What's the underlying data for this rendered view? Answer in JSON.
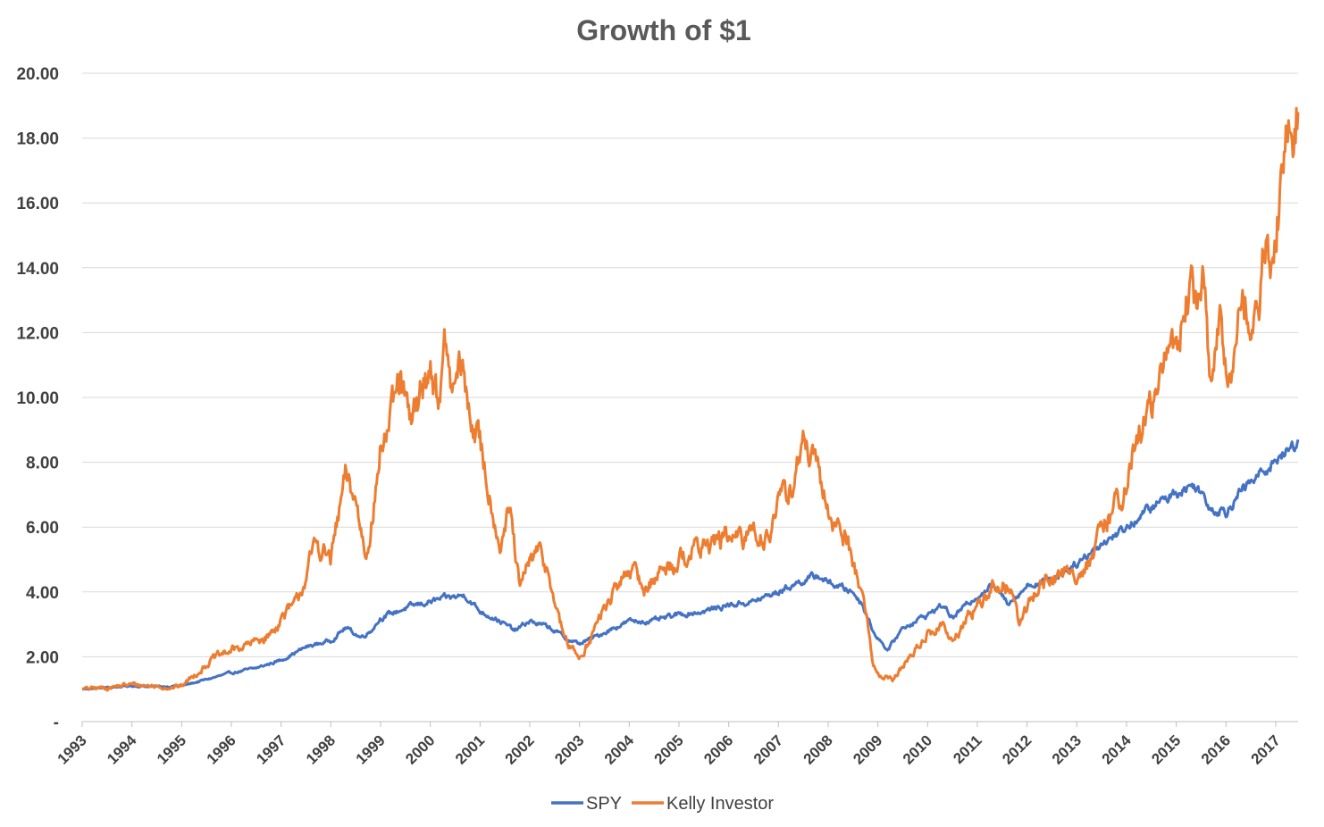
{
  "chart_data": {
    "type": "line",
    "title": "Growth of $1",
    "xlabel": "",
    "ylabel": "",
    "x_ticks": [
      "1993",
      "1994",
      "1995",
      "1996",
      "1997",
      "1998",
      "1999",
      "2000",
      "2001",
      "2002",
      "2003",
      "2004",
      "2005",
      "2006",
      "2007",
      "2008",
      "2009",
      "2010",
      "2011",
      "2012",
      "2013",
      "2014",
      "2015",
      "2016",
      "2017"
    ],
    "y_ticks": [
      "-",
      "2.00",
      "4.00",
      "6.00",
      "8.00",
      "10.00",
      "12.00",
      "14.00",
      "16.00",
      "18.00",
      "20.00"
    ],
    "xlim": [
      1993.0,
      2017.45
    ],
    "ylim": [
      0,
      20
    ],
    "grid": true,
    "legend_position": "bottom",
    "series": [
      {
        "name": "SPY",
        "color": "#4472C4",
        "x": [
          1993.0,
          1993.5,
          1994.0,
          1994.5,
          1995.0,
          1995.5,
          1996.0,
          1996.5,
          1997.0,
          1997.5,
          1998.0,
          1998.3,
          1998.6,
          1998.8,
          1999.0,
          1999.5,
          2000.0,
          2000.3,
          2000.7,
          2001.0,
          2001.3,
          2001.7,
          2002.0,
          2002.4,
          2002.8,
          2003.0,
          2003.3,
          2003.7,
          2004.0,
          2004.5,
          2005.0,
          2005.5,
          2006.0,
          2006.5,
          2007.0,
          2007.4,
          2007.8,
          2008.0,
          2008.5,
          2008.7,
          2008.9,
          2009.0,
          2009.2,
          2009.5,
          2010.0,
          2010.3,
          2010.5,
          2011.0,
          2011.3,
          2011.6,
          2011.8,
          2012.0,
          2012.5,
          2013.0,
          2013.5,
          2014.0,
          2014.5,
          2015.0,
          2015.4,
          2015.7,
          2016.0,
          2016.3,
          2016.6,
          2017.0,
          2017.3,
          2017.45
        ],
        "y": [
          1.0,
          1.05,
          1.1,
          1.08,
          1.1,
          1.3,
          1.5,
          1.65,
          1.9,
          2.3,
          2.5,
          2.9,
          2.6,
          2.8,
          3.2,
          3.5,
          3.7,
          3.8,
          3.9,
          3.4,
          3.2,
          2.8,
          3.1,
          2.9,
          2.5,
          2.4,
          2.6,
          2.9,
          3.1,
          3.1,
          3.3,
          3.4,
          3.6,
          3.7,
          4.0,
          4.3,
          4.5,
          4.3,
          4.0,
          3.6,
          2.8,
          2.6,
          2.2,
          2.9,
          3.3,
          3.6,
          3.2,
          3.9,
          4.2,
          3.7,
          3.9,
          4.2,
          4.4,
          4.9,
          5.5,
          6.0,
          6.6,
          7.1,
          7.3,
          6.6,
          6.5,
          7.1,
          7.5,
          8.1,
          8.4,
          8.7
        ]
      },
      {
        "name": "Kelly Investor",
        "color": "#ED7D31",
        "x": [
          1993.0,
          1993.5,
          1994.0,
          1994.4,
          1994.8,
          1995.0,
          1995.3,
          1995.6,
          1996.0,
          1996.4,
          1996.8,
          1997.0,
          1997.3,
          1997.5,
          1997.7,
          1998.0,
          1998.3,
          1998.5,
          1998.7,
          1998.9,
          1999.0,
          1999.2,
          1999.4,
          1999.6,
          1999.8,
          2000.0,
          2000.15,
          2000.3,
          2000.45,
          2000.6,
          2000.8,
          2001.0,
          2001.2,
          2001.4,
          2001.6,
          2001.8,
          2002.0,
          2002.2,
          2002.4,
          2002.6,
          2002.8,
          2003.0,
          2003.2,
          2003.5,
          2003.8,
          2004.0,
          2004.3,
          2004.6,
          2005.0,
          2005.3,
          2005.6,
          2006.0,
          2006.3,
          2006.5,
          2006.7,
          2007.0,
          2007.3,
          2007.5,
          2007.7,
          2007.9,
          2008.0,
          2008.2,
          2008.4,
          2008.6,
          2008.75,
          2008.9,
          2009.0,
          2009.1,
          2009.3,
          2009.6,
          2010.0,
          2010.3,
          2010.5,
          2010.8,
          2011.0,
          2011.3,
          2011.5,
          2011.7,
          2011.85,
          2012.0,
          2012.3,
          2012.6,
          2013.0,
          2013.3,
          2013.6,
          2013.9,
          2014.2,
          2014.5,
          2014.7,
          2014.9,
          2015.2,
          2015.4,
          2015.55,
          2015.7,
          2015.9,
          2016.05,
          2016.2,
          2016.4,
          2016.6,
          2016.8,
          2016.95,
          2017.1,
          2017.3,
          2017.45
        ],
        "y": [
          1.0,
          1.05,
          1.15,
          1.1,
          1.05,
          1.1,
          1.5,
          1.9,
          2.2,
          2.4,
          2.7,
          3.2,
          3.6,
          4.5,
          5.5,
          5.0,
          7.5,
          6.8,
          5.2,
          7.0,
          8.5,
          9.2,
          10.5,
          9.0,
          10.2,
          11.0,
          10.0,
          11.5,
          10.0,
          11.0,
          9.5,
          8.5,
          7.0,
          5.5,
          6.5,
          4.0,
          5.0,
          5.2,
          4.5,
          3.0,
          2.3,
          2.0,
          2.5,
          3.5,
          4.2,
          4.8,
          4.1,
          4.6,
          5.0,
          5.3,
          5.5,
          5.7,
          5.5,
          6.1,
          5.6,
          6.6,
          7.4,
          8.6,
          8.0,
          7.0,
          6.5,
          6.0,
          5.5,
          4.4,
          3.5,
          1.8,
          1.5,
          1.4,
          1.3,
          1.9,
          2.7,
          3.0,
          2.4,
          3.2,
          3.6,
          4.1,
          4.3,
          4.0,
          2.9,
          3.6,
          4.3,
          4.5,
          4.6,
          5.0,
          6.2,
          7.0,
          8.5,
          9.8,
          10.5,
          11.5,
          12.8,
          13.2,
          13.5,
          10.5,
          12.2,
          10.0,
          12.5,
          13.0,
          12.0,
          14.8,
          13.5,
          16.5,
          18.3,
          18.8
        ]
      }
    ]
  }
}
